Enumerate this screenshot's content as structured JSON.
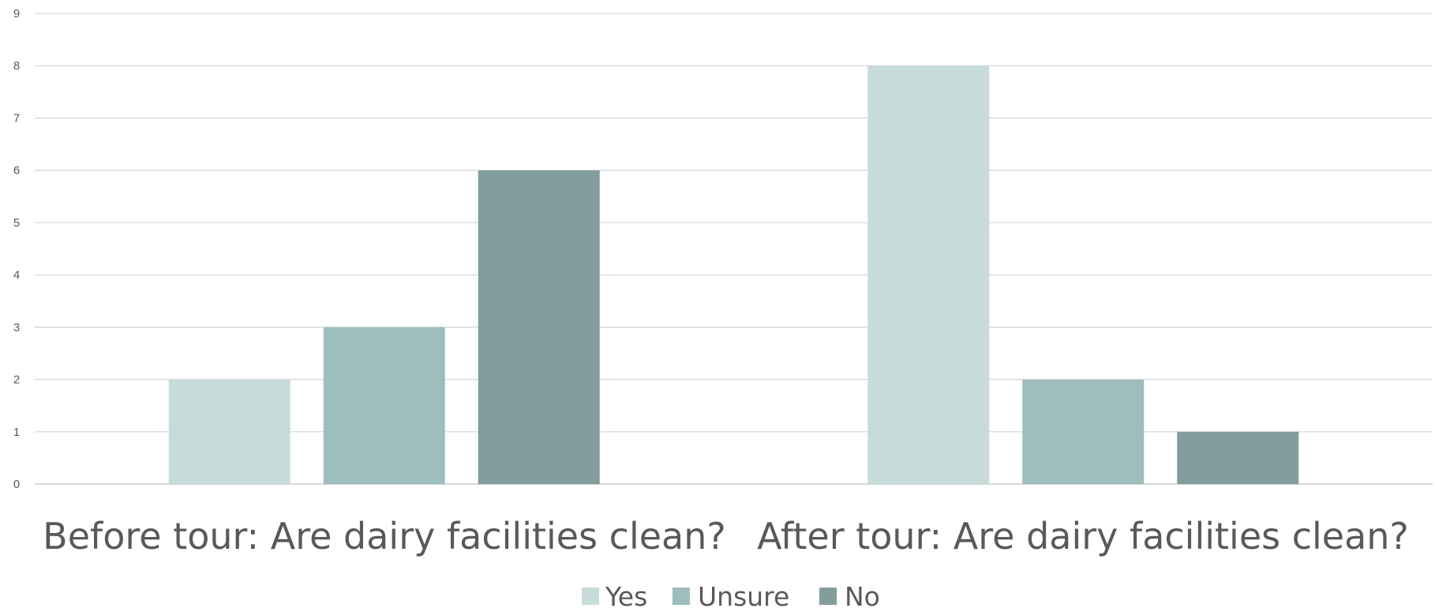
{
  "chart_data": {
    "type": "bar",
    "categories": [
      "Before tour: Are dairy facilities clean?",
      "After tour: Are dairy facilities clean?"
    ],
    "series": [
      {
        "name": "Yes",
        "values": [
          2,
          8
        ],
        "color": "#c7dbda"
      },
      {
        "name": "Unsure",
        "values": [
          3,
          2
        ],
        "color": "#9dbebd"
      },
      {
        "name": "No",
        "values": [
          6,
          1
        ],
        "color": "#829d9c"
      }
    ],
    "ylim": [
      0,
      9
    ],
    "y_ticks": [
      0,
      1,
      2,
      3,
      4,
      5,
      6,
      7,
      8,
      9
    ],
    "grid": true,
    "legend_position": "bottom",
    "title": "",
    "xlabel": "",
    "ylabel": ""
  }
}
